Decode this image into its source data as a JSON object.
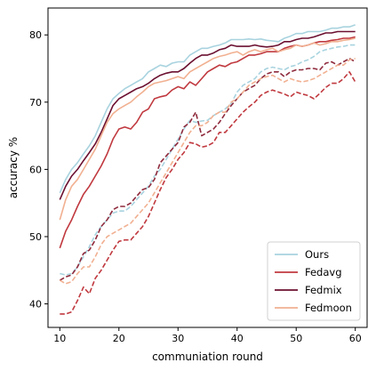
{
  "chart_data": {
    "type": "line",
    "title": "",
    "xlabel": "communiation round",
    "ylabel": "accuracy %",
    "xlim": [
      8,
      62
    ],
    "ylim": [
      36.5,
      84
    ],
    "xticks": [
      10,
      20,
      30,
      40,
      50,
      60
    ],
    "yticks": [
      40,
      50,
      60,
      70,
      80
    ],
    "grid": false,
    "legend_position": "bottom-right",
    "x": [
      10,
      11,
      12,
      13,
      14,
      15,
      16,
      17,
      18,
      19,
      20,
      21,
      22,
      23,
      24,
      25,
      26,
      27,
      28,
      29,
      30,
      31,
      32,
      33,
      34,
      35,
      36,
      37,
      38,
      39,
      40,
      41,
      42,
      43,
      44,
      45,
      46,
      47,
      48,
      49,
      50,
      51,
      52,
      53,
      54,
      55,
      56,
      57,
      58,
      59,
      60
    ],
    "series": [
      {
        "name": "Ours",
        "color": "#a8d3df",
        "dash": false,
        "show_in_legend": true,
        "values": [
          56.5,
          58.5,
          60,
          61,
          62.3,
          63.5,
          65,
          67,
          69,
          70.5,
          71.3,
          72,
          72.5,
          73,
          73.5,
          74.5,
          75,
          75.5,
          75.3,
          75.8,
          76,
          76,
          77,
          77.5,
          78,
          78,
          78.3,
          78.5,
          78.8,
          79.3,
          79.3,
          79.3,
          79.4,
          79.3,
          79.4,
          79.2,
          79.1,
          79,
          79.5,
          79.8,
          80.2,
          80.2,
          80.5,
          80.5,
          80.5,
          80.7,
          81,
          81,
          81.2,
          81.2,
          81.5
        ]
      },
      {
        "name": "Fedavg",
        "color": "#c0393f",
        "dash": false,
        "show_in_legend": true,
        "values": [
          48.3,
          50.8,
          52.5,
          54.5,
          56.3,
          57.5,
          59,
          60.5,
          62.3,
          64.5,
          66,
          66.3,
          66,
          67,
          68.5,
          69,
          70.5,
          70.8,
          71,
          71.8,
          72.3,
          72,
          73,
          72.5,
          73.5,
          74.5,
          75,
          75.5,
          75.3,
          75.8,
          76,
          76.5,
          77,
          77,
          77.2,
          77.5,
          77.5,
          77.5,
          78,
          78.3,
          78.5,
          78.3,
          78.5,
          78.8,
          79,
          79,
          79.2,
          79.3,
          79.5,
          79.5,
          79.7
        ]
      },
      {
        "name": "Fedmix",
        "color": "#6b1030",
        "dash": false,
        "show_in_legend": true,
        "values": [
          55.5,
          57.5,
          59,
          60,
          61.3,
          62.5,
          63.8,
          65.5,
          67.5,
          69.5,
          70.5,
          71,
          71.5,
          72,
          72.3,
          72.8,
          73.5,
          74,
          74.3,
          74.5,
          74.5,
          75,
          75.8,
          76.5,
          77,
          77,
          77.3,
          77.8,
          78,
          78.5,
          78.3,
          78.3,
          78.3,
          78.5,
          78.3,
          78.2,
          78.3,
          78.5,
          79,
          79,
          79.3,
          79.5,
          79.5,
          79.7,
          80,
          80.3,
          80.3,
          80.5,
          80.5,
          80.5,
          80.5
        ]
      },
      {
        "name": "Fedmoon",
        "color": "#f1b091",
        "dash": false,
        "show_in_legend": true,
        "values": [
          52.5,
          55.5,
          57.5,
          58.5,
          60,
          61.5,
          63,
          65,
          67,
          68.3,
          69,
          69.5,
          70,
          70.8,
          71.5,
          72.3,
          72.8,
          73,
          73.2,
          73.5,
          73.8,
          73.5,
          74.5,
          75,
          75.5,
          76,
          76.5,
          76.8,
          77,
          77.3,
          77.5,
          77,
          77.5,
          77.8,
          77.5,
          77.8,
          78,
          77.5,
          77.8,
          78,
          78.5,
          78.3,
          78.5,
          78.8,
          78.5,
          78.7,
          79,
          79,
          79.2,
          79.3,
          79.5
        ]
      },
      {
        "name": "Ours-dashed",
        "color": "#a8d3df",
        "dash": true,
        "show_in_legend": false,
        "values": [
          44.5,
          44.3,
          44.5,
          45.5,
          47,
          48.5,
          50.3,
          51.5,
          52.5,
          53.5,
          53.8,
          53.8,
          54.5,
          55.5,
          56.5,
          57.5,
          59,
          60,
          61.5,
          63,
          64.5,
          66,
          67.3,
          67,
          67.2,
          67.3,
          68,
          68.5,
          69,
          69.8,
          71.5,
          72.5,
          73,
          73.5,
          74.5,
          75,
          75.2,
          75,
          74.8,
          75.3,
          75.5,
          76,
          76.3,
          76.8,
          77.5,
          77.8,
          78,
          78.2,
          78.3,
          78.5,
          78.5
        ]
      },
      {
        "name": "Fedavg-dashed",
        "color": "#c0393f",
        "dash": true,
        "show_in_legend": false,
        "values": [
          38.5,
          38.5,
          38.8,
          40.5,
          42.5,
          41.5,
          43.8,
          45,
          46.5,
          48,
          49.3,
          49.5,
          49.5,
          50.5,
          51.5,
          53,
          55,
          57,
          58.8,
          60,
          61.5,
          62.5,
          64,
          63.8,
          63.3,
          63.5,
          64,
          65.5,
          65.5,
          66.5,
          67.5,
          68.5,
          69.3,
          70,
          71,
          71.5,
          71.8,
          71.5,
          71.2,
          70.8,
          71.5,
          71.2,
          71,
          70.5,
          71.3,
          72.2,
          72.8,
          72.8,
          73.5,
          74.5,
          73
        ]
      },
      {
        "name": "Fedmix-dashed",
        "color": "#8e2a3c",
        "dash": true,
        "show_in_legend": false,
        "values": [
          43.5,
          44,
          44.3,
          45.5,
          47.5,
          48,
          49.5,
          51.5,
          52.5,
          54,
          54.5,
          54.5,
          55,
          56,
          57,
          57.3,
          58.5,
          61,
          62,
          63,
          64,
          66.3,
          67,
          68.5,
          65,
          65.5,
          66,
          67,
          68.3,
          69.5,
          70.5,
          71.5,
          72,
          72.5,
          73.5,
          74.2,
          74.5,
          74.5,
          73.8,
          74.5,
          74.8,
          74.8,
          75,
          75,
          74.8,
          75.8,
          76,
          75.5,
          76,
          76.5,
          76
        ]
      },
      {
        "name": "Fedmoon-dashed",
        "color": "#f1b091",
        "dash": true,
        "show_in_legend": false,
        "values": [
          43.5,
          43,
          43.3,
          44.5,
          45.5,
          45.5,
          47,
          48.8,
          50,
          50.5,
          51,
          51.5,
          52,
          53,
          54,
          55,
          56.5,
          58,
          59.5,
          61,
          62.5,
          64,
          65.5,
          66.5,
          66.5,
          67,
          68,
          68.5,
          68.5,
          70,
          70.5,
          71.5,
          72.5,
          73,
          73.5,
          73.8,
          74,
          73.5,
          73,
          73.5,
          73.2,
          73,
          73.2,
          73.5,
          74,
          74.5,
          75,
          75.5,
          75.5,
          76.3,
          76.5
        ]
      }
    ]
  }
}
